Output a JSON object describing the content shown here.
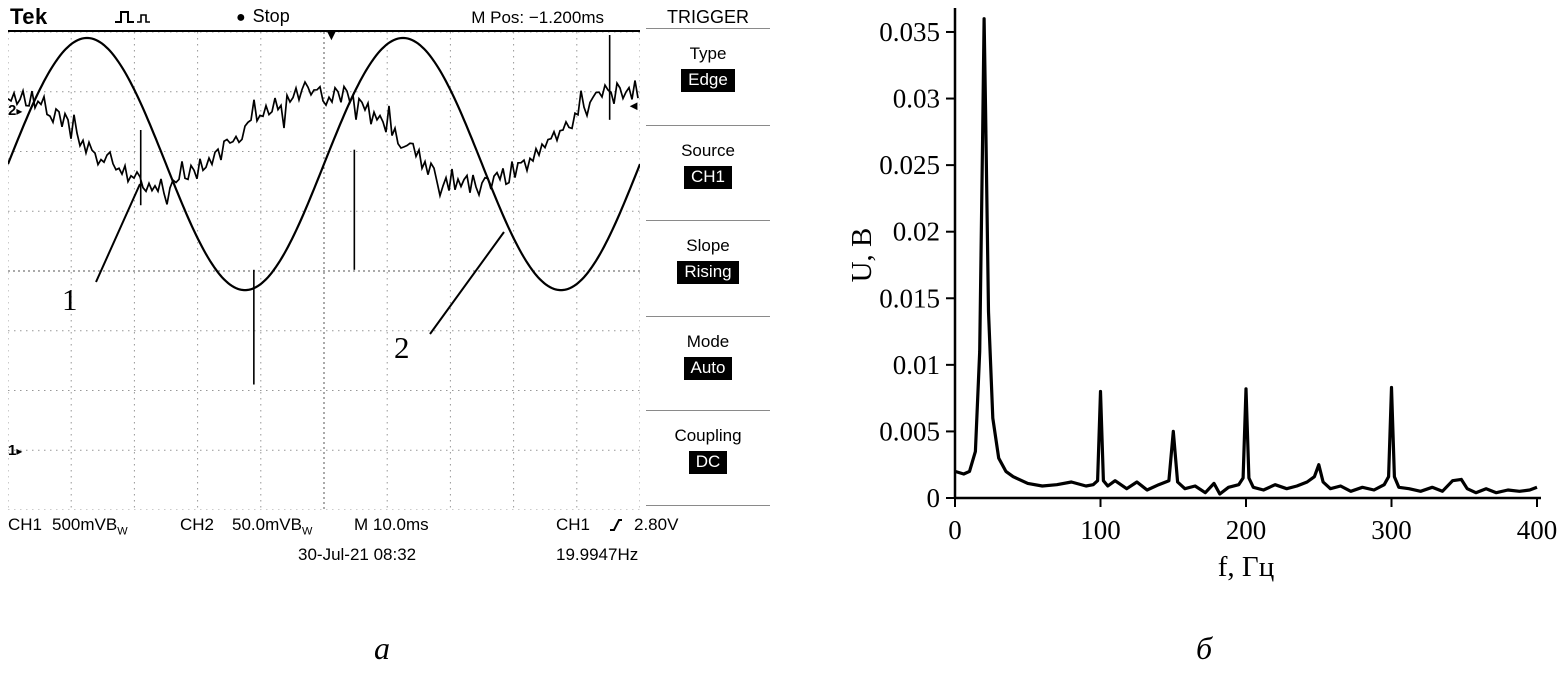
{
  "scope": {
    "brand": "Tek",
    "status": "Stop",
    "m_pos_readout": "M Pos: −1.200ms",
    "markers": {
      "ch2": "2",
      "ch1": "1"
    },
    "readout": {
      "ch1_label": "CH1",
      "ch1_scale": "500mVB",
      "ch1_bw_sub": "W",
      "ch2_label": "CH2",
      "ch2_scale": "50.0mVB",
      "ch2_bw_sub": "W",
      "timebase": "M 10.0ms",
      "trig_channel": "CH1",
      "trig_level": "2.80V",
      "datetime": "30-Jul-21 08:32",
      "trig_frequency": "19.9947Hz"
    },
    "trigger_menu": {
      "title": "TRIGGER",
      "items": [
        {
          "label": "Type",
          "value": "Edge"
        },
        {
          "label": "Source",
          "value": "CH1"
        },
        {
          "label": "Slope",
          "value": "Rising"
        },
        {
          "label": "Mode",
          "value": "Auto"
        },
        {
          "label": "Coupling",
          "value": "DC"
        }
      ]
    }
  },
  "icons": {
    "stop_dot": "●",
    "trigger_position_marker": "▼",
    "trigger_level_arrow": "◄",
    "channel_marker_arrow": "▸"
  },
  "annotations": [
    {
      "label": "1",
      "points_to": "noisy trace (CH2)",
      "line": [
        88,
        250,
        132,
        152
      ]
    },
    {
      "label": "2",
      "points_to": "sine trace (CH1)",
      "line": [
        422,
        302,
        496,
        200
      ]
    }
  ],
  "captions": {
    "left": "а",
    "right": "б"
  },
  "chart_data": [
    {
      "type": "line",
      "title": "Oscillogram: 19.9947 Hz sine (CH1, trace 2) and noisy signal (CH2, trace 1)",
      "timebase": "10 ms/div",
      "divisions": {
        "x": 10,
        "y": 8
      },
      "traces": [
        {
          "name": "2 — CH1 sine",
          "period_div": 5,
          "peak_x_div": 1.25,
          "center_y_div": 2.21,
          "amplitude_div": 2.11
        },
        {
          "name": "1 — CH2 noisy",
          "period_div": 5,
          "trough_x_div": 2.38,
          "center_y_div": 1.76,
          "amplitude_div": 0.79,
          "noise_div": 0.18
        }
      ],
      "spikes": [
        {
          "x_div": 2.1,
          "from_div": 1.64,
          "to_div": 2.9
        },
        {
          "x_div": 3.89,
          "from_div": 3.98,
          "to_div": 5.9
        },
        {
          "x_div": 5.48,
          "from_div": 1.97,
          "to_div": 3.98
        },
        {
          "x_div": 9.52,
          "from_div": 1.47,
          "to_div": 0.05
        }
      ]
    },
    {
      "type": "line",
      "title": "Spectrum",
      "xlabel": "f, Гц",
      "ylabel": "U, В",
      "xlim": [
        0,
        400
      ],
      "ylim": [
        0,
        0.0365
      ],
      "legend": "off",
      "grid": "off",
      "xticks": [
        {
          "v": 0,
          "label": "0"
        },
        {
          "v": 100,
          "label": "100"
        },
        {
          "v": 200,
          "label": "200"
        },
        {
          "v": 300,
          "label": "300"
        },
        {
          "v": 400,
          "label": "400"
        }
      ],
      "yticks": [
        {
          "v": 0,
          "label": "0"
        },
        {
          "v": 0.005,
          "label": "0.005"
        },
        {
          "v": 0.01,
          "label": "0.01"
        },
        {
          "v": 0.015,
          "label": "0.015"
        },
        {
          "v": 0.02,
          "label": "0.02"
        },
        {
          "v": 0.025,
          "label": "0.025"
        },
        {
          "v": 0.03,
          "label": "0.03"
        },
        {
          "v": 0.035,
          "label": "0.035"
        }
      ],
      "peaks": [
        {
          "f": 20,
          "U": 0.036
        },
        {
          "f": 100,
          "U": 0.008
        },
        {
          "f": 150,
          "U": 0.005
        },
        {
          "f": 200,
          "U": 0.0082
        },
        {
          "f": 250,
          "U": 0.0025
        },
        {
          "f": 300,
          "U": 0.0083
        }
      ],
      "x": [
        0,
        6,
        10,
        14,
        17,
        19,
        20,
        21,
        23,
        26,
        30,
        35,
        40,
        50,
        60,
        70,
        80,
        90,
        95,
        98,
        100,
        102,
        105,
        110,
        118,
        125,
        132,
        140,
        147,
        150,
        153,
        158,
        165,
        172,
        178,
        182,
        188,
        195,
        198,
        200,
        202,
        205,
        212,
        220,
        228,
        235,
        242,
        247,
        250,
        253,
        258,
        265,
        272,
        280,
        288,
        295,
        298,
        300,
        302,
        305,
        312,
        320,
        328,
        335,
        342,
        348,
        352,
        358,
        365,
        372,
        380,
        388,
        395,
        400
      ],
      "y": [
        0.002,
        0.0018,
        0.002,
        0.0035,
        0.011,
        0.027,
        0.036,
        0.029,
        0.014,
        0.006,
        0.003,
        0.002,
        0.0016,
        0.0011,
        0.0009,
        0.001,
        0.0012,
        0.0009,
        0.001,
        0.0013,
        0.008,
        0.0013,
        0.0009,
        0.0013,
        0.0007,
        0.0012,
        0.0006,
        0.001,
        0.0013,
        0.005,
        0.0012,
        0.0007,
        0.0009,
        0.0004,
        0.0011,
        0.0003,
        0.0008,
        0.001,
        0.0015,
        0.0082,
        0.0015,
        0.0008,
        0.0006,
        0.001,
        0.0007,
        0.0009,
        0.0012,
        0.0016,
        0.0025,
        0.0012,
        0.0007,
        0.0009,
        0.0005,
        0.0008,
        0.0006,
        0.001,
        0.0016,
        0.0083,
        0.0016,
        0.0008,
        0.0007,
        0.0005,
        0.0008,
        0.0005,
        0.0013,
        0.0014,
        0.0007,
        0.0004,
        0.0007,
        0.0004,
        0.0006,
        0.0005,
        0.0006,
        0.0008
      ]
    }
  ]
}
